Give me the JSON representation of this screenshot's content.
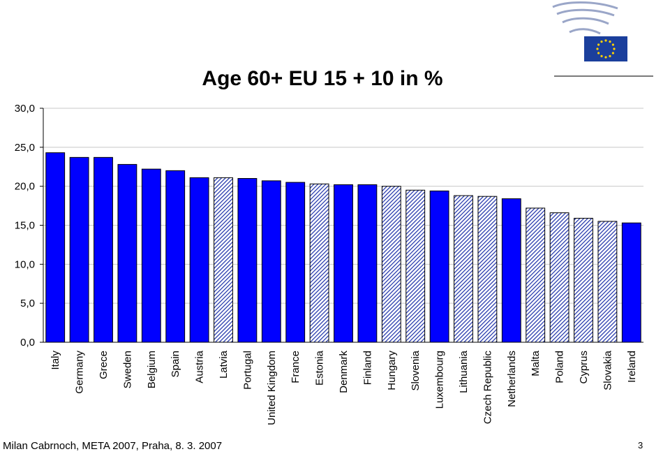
{
  "footer": "Milan Cabrnoch, META 2007, Praha, 8. 3. 2007",
  "page_number": "3",
  "colors": {
    "solid_bar": "#0000ff",
    "hatch_line": "#1a2ea8",
    "hatch_bg": "#ffffff",
    "grid": "#c8c8c8",
    "logo_blue": "#1b3f9c",
    "logo_star": "#ffd200"
  },
  "chart_data": {
    "type": "bar",
    "title": "Age 60+ EU 15 + 10 in %",
    "xlabel": "",
    "ylabel": "",
    "ylim": [
      0,
      30
    ],
    "yticks": [
      "0,0",
      "5,0",
      "10,0",
      "15,0",
      "20,0",
      "25,0",
      "30,0"
    ],
    "grid": true,
    "categories": [
      "Italy",
      "Germany",
      "Grece",
      "Sweden",
      "Belgium",
      "Spain",
      "Austria",
      "Latvia",
      "Portugal",
      "United Kingdom",
      "France",
      "Estonia",
      "Denmark",
      "Finland",
      "Hungary",
      "Slovenia",
      "Luxembourg",
      "Lithuania",
      "Czech Republic",
      "Netherlands",
      "Malta",
      "Poland",
      "Cyprus",
      "Slovakia",
      "Ireland"
    ],
    "values": [
      24.3,
      23.7,
      23.7,
      22.8,
      22.2,
      22.0,
      21.1,
      21.1,
      21.0,
      20.7,
      20.5,
      20.3,
      20.2,
      20.2,
      20.0,
      19.5,
      19.4,
      18.8,
      18.7,
      18.4,
      17.2,
      16.6,
      15.9,
      15.5,
      15.3
    ],
    "member_group": [
      "EU15",
      "EU15",
      "EU15",
      "EU15",
      "EU15",
      "EU15",
      "EU15",
      "new",
      "EU15",
      "EU15",
      "EU15",
      "new",
      "EU15",
      "EU15",
      "new",
      "new",
      "EU15",
      "new",
      "new",
      "EU15",
      "new",
      "new",
      "new",
      "new",
      "EU15"
    ]
  }
}
